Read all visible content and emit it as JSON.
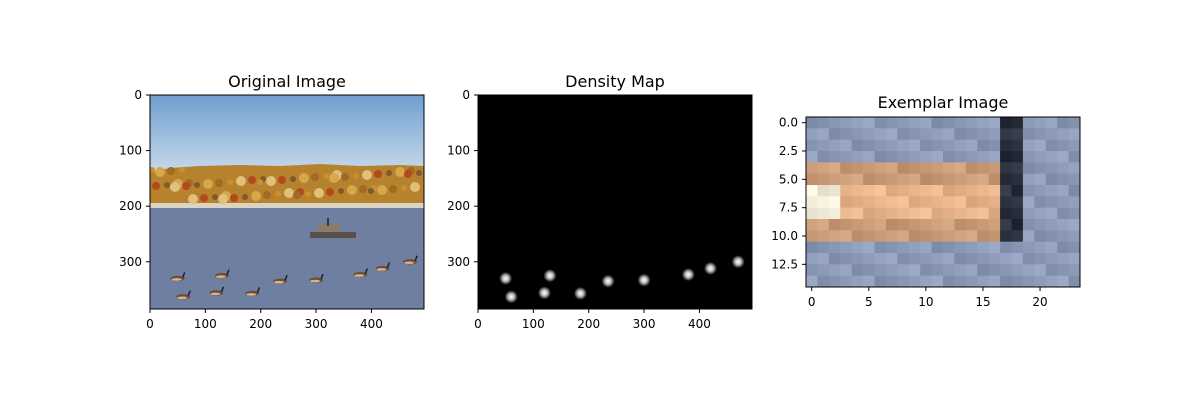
{
  "chart_data": [
    {
      "type": "image",
      "title": "Original Image",
      "xlim": [
        0,
        495
      ],
      "ylim": [
        385,
        0
      ],
      "xticks": [
        0,
        100,
        200,
        300,
        400
      ],
      "yticks": [
        0,
        100,
        200,
        300
      ],
      "geese": [
        {
          "x": 50,
          "y": 330
        },
        {
          "x": 130,
          "y": 325
        },
        {
          "x": 235,
          "y": 335
        },
        {
          "x": 300,
          "y": 333
        },
        {
          "x": 380,
          "y": 323
        },
        {
          "x": 420,
          "y": 312
        },
        {
          "x": 470,
          "y": 300
        },
        {
          "x": 60,
          "y": 363
        },
        {
          "x": 120,
          "y": 356
        },
        {
          "x": 185,
          "y": 357
        }
      ],
      "colors": {
        "sky_top": "#6f9fd0",
        "sky_bottom": "#c4d7ea",
        "hill": "#b7822e",
        "water": "#6f7fa2"
      }
    },
    {
      "type": "heatmap",
      "title": "Density Map",
      "xlim": [
        0,
        495
      ],
      "ylim": [
        385,
        0
      ],
      "xticks": [
        0,
        100,
        200,
        300,
        400
      ],
      "yticks": [
        0,
        100,
        200,
        300
      ],
      "points": [
        {
          "x": 50,
          "y": 330
        },
        {
          "x": 130,
          "y": 325
        },
        {
          "x": 235,
          "y": 335
        },
        {
          "x": 300,
          "y": 333
        },
        {
          "x": 380,
          "y": 323
        },
        {
          "x": 420,
          "y": 312
        },
        {
          "x": 470,
          "y": 300
        },
        {
          "x": 60,
          "y": 363
        },
        {
          "x": 120,
          "y": 356
        },
        {
          "x": 185,
          "y": 357
        }
      ]
    },
    {
      "type": "image",
      "title": "Exemplar Image",
      "xlim": [
        -0.5,
        23.5
      ],
      "ylim": [
        14.5,
        -0.5
      ],
      "xticks": [
        0,
        5,
        10,
        15,
        20
      ],
      "yticks": [
        0.0,
        2.5,
        5.0,
        7.5,
        10.0,
        12.5
      ],
      "ytick_labels": [
        "0.0",
        "2.5",
        "5.0",
        "7.5",
        "10.0",
        "12.5"
      ],
      "colors": {
        "background": "#8c9ab8",
        "body": "#c99a76",
        "belly": "#e8b48c",
        "head": "#f3eedc",
        "neck": "#2a2f3c"
      }
    }
  ]
}
